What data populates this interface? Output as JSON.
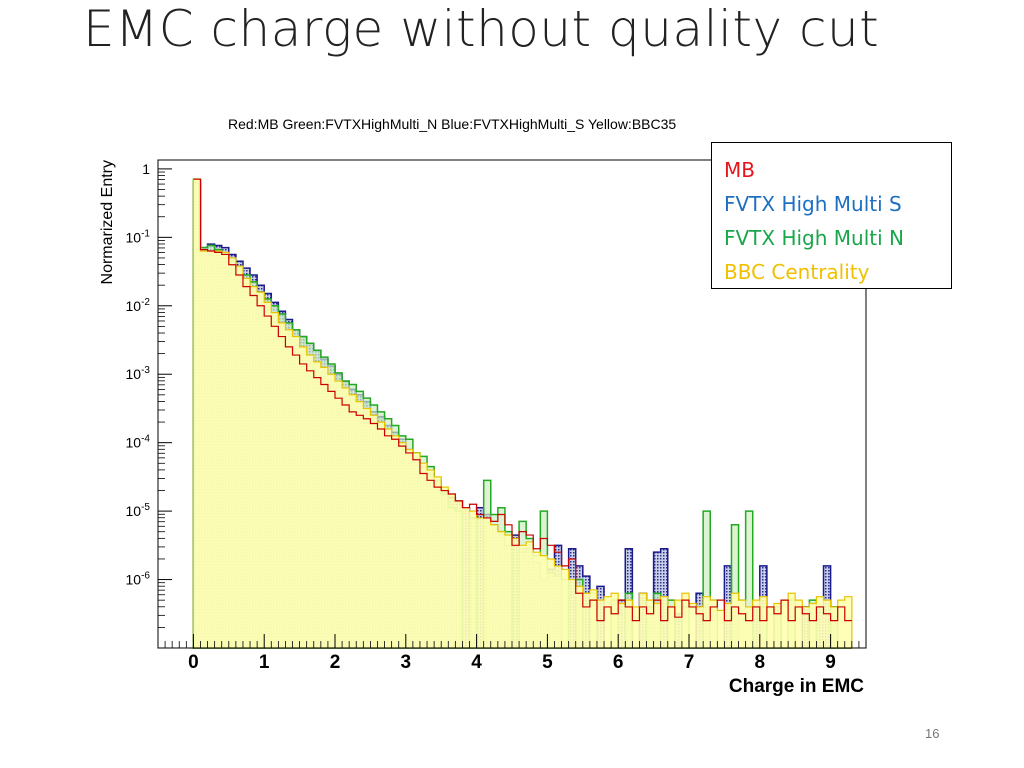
{
  "slide": {
    "title": "EMC charge without quality cut",
    "page_number": "16"
  },
  "chart_data": {
    "type": "histogram",
    "title": "Red:MB Green:FVTXHighMulti_N Blue:FVTXHighMulti_S Yellow:BBC35",
    "xlabel": "Charge in EMC",
    "ylabel": "Normarized Entry",
    "xlim": [
      -0.5,
      9.5
    ],
    "ylim_log10": [
      -7,
      0.13
    ],
    "x_ticks": [
      0,
      1,
      2,
      3,
      4,
      5,
      6,
      7,
      8,
      9
    ],
    "y_ticks": [
      {
        "value": 1,
        "label": "1"
      },
      {
        "value": 0.1,
        "label": "10-1"
      },
      {
        "value": 0.01,
        "label": "10-2"
      },
      {
        "value": 0.001,
        "label": "10-3"
      },
      {
        "value": 0.0001,
        "label": "10-4"
      },
      {
        "value": 1e-05,
        "label": "10-5"
      },
      {
        "value": 1e-06,
        "label": "10-6"
      }
    ],
    "bin_width": 0.1,
    "x_start": 0,
    "series": [
      {
        "name": "MB",
        "color": "#cc0000",
        "log10_values": [
          -0.15,
          -1.18,
          -1.2,
          -1.22,
          -1.25,
          -1.4,
          -1.55,
          -1.72,
          -1.85,
          -2.0,
          -2.15,
          -2.3,
          -2.45,
          -2.6,
          -2.72,
          -2.85,
          -2.95,
          -3.05,
          -3.15,
          -3.25,
          -3.35,
          -3.45,
          -3.55,
          -3.6,
          -3.65,
          -3.72,
          -3.8,
          -3.9,
          -3.95,
          -4.05,
          -4.15,
          -4.25,
          -4.45,
          -4.55,
          -4.65,
          -4.7,
          -4.75,
          -4.85,
          -4.95,
          -4.9,
          -5.05,
          -5.1,
          -5.15,
          -5.05,
          -5.2,
          -5.5,
          -5.3,
          -5.35,
          -5.55,
          -5.4,
          -5.5,
          -5.6,
          -5.8,
          -5.7,
          -6.2,
          -6.4,
          -6.3,
          -6.6,
          -6.4,
          -6.5,
          -6.3,
          -6.4,
          -6.6,
          -6.4,
          -6.5,
          -6.3,
          -6.6,
          -6.4,
          -6.55,
          -6.3,
          -6.4,
          -6.5,
          -6.6,
          -6.4,
          -6.3,
          -6.6,
          -6.4,
          -6.5,
          -6.6,
          -6.4,
          -6.6,
          -6.4,
          -6.5,
          -6.3,
          -6.6,
          -6.4,
          -6.5,
          -6.6,
          -6.4,
          -6.5,
          -6.6,
          -6.4,
          -6.6
        ]
      },
      {
        "name": "FVTX High Multi S",
        "color": "#1a1a8c",
        "log10_values": [
          -0.2,
          -1.15,
          -1.1,
          -1.12,
          -1.15,
          -1.25,
          -1.35,
          -1.45,
          -1.55,
          -1.7,
          -1.82,
          -1.95,
          -2.08,
          -2.2,
          -2.35,
          -2.45,
          -2.55,
          -2.65,
          -2.78,
          -2.88,
          -3.0,
          -3.1,
          -3.22,
          -3.3,
          -3.4,
          -3.55,
          -3.62,
          -3.75,
          -3.85,
          -3.95,
          -4.1,
          -4.25,
          -4.35,
          -4.45,
          -4.55,
          -4.7,
          -4.8,
          -4.85,
          -4.95,
          -5.1,
          -4.95,
          -5.05,
          -5.2,
          -5.3,
          -5.5,
          -5.35,
          -5.6,
          -5.55,
          -5.75,
          -6.0,
          -5.85,
          -5.5,
          -7,
          -5.55,
          -5.8,
          -5.95,
          -7,
          -6.1,
          -7,
          -7,
          -6.3,
          -5.55,
          -7,
          -6.2,
          -6.4,
          -5.6,
          -5.55,
          -7,
          -6.5,
          -7,
          -7,
          -6.2,
          -6.4,
          -7,
          -7,
          -5.8,
          -6.4,
          -7,
          -7,
          -6.4,
          -5.8,
          -7,
          -6.4,
          -7,
          -7,
          -7,
          -6.4,
          -7,
          -6.4,
          -5.8,
          -6.4,
          -7,
          -7
        ]
      },
      {
        "name": "FVTX High Multi N",
        "color": "#22aa22",
        "log10_values": [
          -0.15,
          -1.15,
          -1.12,
          -1.18,
          -1.25,
          -1.35,
          -1.45,
          -1.55,
          -1.65,
          -1.8,
          -1.9,
          -2.0,
          -2.12,
          -2.25,
          -2.35,
          -2.45,
          -2.55,
          -2.65,
          -2.75,
          -2.85,
          -2.98,
          -3.1,
          -3.15,
          -3.25,
          -3.35,
          -3.45,
          -3.55,
          -3.65,
          -3.75,
          -3.9,
          -3.95,
          -4.15,
          -4.2,
          -4.35,
          -4.55,
          -4.75,
          -4.95,
          -5.0,
          -7,
          -5.1,
          -7,
          -4.55,
          -5.05,
          -4.95,
          -5.3,
          -7,
          -5.15,
          -5.4,
          -5.65,
          -5.0,
          -5.9,
          -5.95,
          -6.0,
          -7,
          -6.0,
          -7,
          -6.2,
          -7,
          -7,
          -6.3,
          -7,
          -6.2,
          -7,
          -7,
          -6.4,
          -6.2,
          -7,
          -6.3,
          -7,
          -6.4,
          -7,
          -7,
          -5.0,
          -6.3,
          -7,
          -7,
          -5.2,
          -6.3,
          -5.0,
          -7,
          -6.4,
          -7,
          -6.4,
          -7,
          -6.3,
          -7,
          -7,
          -6.3,
          -7,
          -7,
          -6.4,
          -7,
          -7
        ]
      },
      {
        "name": "BBC Centrality",
        "color": "#e8c400",
        "log10_values": [
          -0.15,
          -1.2,
          -1.2,
          -1.2,
          -1.22,
          -1.3,
          -1.42,
          -1.6,
          -1.72,
          -1.8,
          -1.95,
          -2.1,
          -2.25,
          -2.35,
          -2.45,
          -2.6,
          -2.72,
          -2.82,
          -2.9,
          -3.0,
          -3.1,
          -3.2,
          -3.3,
          -3.4,
          -3.5,
          -3.6,
          -3.7,
          -3.8,
          -3.9,
          -4.0,
          -4.1,
          -4.15,
          -4.3,
          -4.4,
          -4.5,
          -4.65,
          -4.75,
          -4.85,
          -4.95,
          -5.0,
          -5.1,
          -5.1,
          -5.2,
          -5.3,
          -5.35,
          -5.4,
          -5.5,
          -5.45,
          -5.6,
          -5.65,
          -5.7,
          -5.8,
          -5.85,
          -6.0,
          -6.1,
          -6.2,
          -6.15,
          -6.3,
          -6.25,
          -6.2,
          -6.35,
          -6.3,
          -6.4,
          -6.2,
          -6.3,
          -6.35,
          -6.25,
          -6.4,
          -6.3,
          -6.2,
          -6.35,
          -6.4,
          -6.25,
          -6.3,
          -6.45,
          -6.35,
          -6.2,
          -6.3,
          -6.4,
          -6.3,
          -6.25,
          -6.4,
          -6.35,
          -6.3,
          -6.2,
          -6.3,
          -6.4,
          -6.35,
          -6.25,
          -6.3,
          -6.4,
          -6.3,
          -6.25
        ]
      }
    ]
  },
  "legend": {
    "items": [
      {
        "label": "MB",
        "color": "#e8141c"
      },
      {
        "label": "FVTX High Multi S",
        "color": "#1d6fc1"
      },
      {
        "label": "FVTX High Multi N",
        "color": "#1aa64b"
      },
      {
        "label": "BBC Centrality",
        "color": "#f0c000"
      }
    ]
  }
}
